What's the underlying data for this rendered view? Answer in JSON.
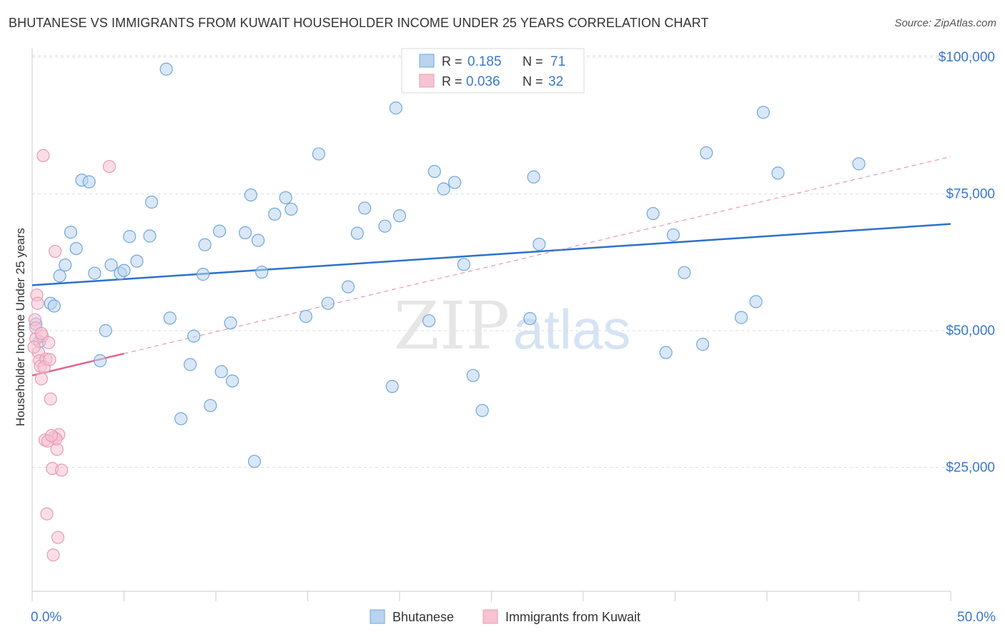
{
  "title": "BHUTANESE VS IMMIGRANTS FROM KUWAIT HOUSEHOLDER INCOME UNDER 25 YEARS CORRELATION CHART",
  "source": "Source: ZipAtlas.com",
  "watermark": {
    "zip": "ZIP",
    "atlas": "atlas"
  },
  "colors": {
    "blue": "#6fa8dc",
    "blue_fill": "#b9d3f0",
    "blue_line": "#2c72c7",
    "pink": "#e89ab3",
    "pink_fill": "#f6c3d3",
    "pink_line": "#e0648f",
    "axis_text": "#3a78c8",
    "grid": "#dddddd"
  },
  "legend": {
    "rows": [
      {
        "r_label": "R =",
        "r_value": "0.185",
        "n_label": "N =",
        "n_value": "71"
      },
      {
        "r_label": "R =",
        "r_value": "0.036",
        "n_label": "N =",
        "n_value": "32"
      }
    ]
  },
  "chart_data": {
    "type": "scatter",
    "xlabel": "",
    "ylabel": "Householder Income Under 25 years",
    "xlim": [
      0,
      50
    ],
    "ylim": [
      0,
      105000
    ],
    "x_tick_labels": [
      "0.0%",
      "50.0%"
    ],
    "y_ticks": [
      25000,
      50000,
      75000,
      100000
    ],
    "y_tick_labels": [
      "$25,000",
      "$50,000",
      "$75,000",
      "$100,000"
    ],
    "grid": true,
    "series": [
      {
        "name": "Bhutanese",
        "color": "blue",
        "trend": {
          "x": [
            0,
            50
          ],
          "y": [
            58300,
            69500
          ],
          "style": "solid"
        },
        "points": [
          [
            0.2,
            51200
          ],
          [
            0.4,
            48000
          ],
          [
            1.0,
            55000
          ],
          [
            1.2,
            54500
          ],
          [
            1.5,
            60000
          ],
          [
            1.8,
            62000
          ],
          [
            2.1,
            68000
          ],
          [
            2.4,
            65000
          ],
          [
            2.7,
            77500
          ],
          [
            3.1,
            77200
          ],
          [
            3.4,
            60500
          ],
          [
            4.0,
            50000
          ],
          [
            3.7,
            44500
          ],
          [
            4.3,
            62000
          ],
          [
            4.8,
            60500
          ],
          [
            5.0,
            61000
          ],
          [
            5.3,
            67200
          ],
          [
            5.7,
            62700
          ],
          [
            6.4,
            67300
          ],
          [
            6.5,
            73500
          ],
          [
            7.3,
            97800
          ],
          [
            7.5,
            52300
          ],
          [
            8.1,
            33900
          ],
          [
            8.6,
            43800
          ],
          [
            8.8,
            49000
          ],
          [
            9.3,
            60300
          ],
          [
            9.4,
            65700
          ],
          [
            9.7,
            36300
          ],
          [
            10.3,
            42500
          ],
          [
            10.2,
            68200
          ],
          [
            10.8,
            51400
          ],
          [
            10.9,
            40800
          ],
          [
            11.6,
            67900
          ],
          [
            11.9,
            74800
          ],
          [
            12.3,
            66500
          ],
          [
            12.5,
            60700
          ],
          [
            12.1,
            26100
          ],
          [
            13.2,
            71300
          ],
          [
            13.8,
            74300
          ],
          [
            14.1,
            72200
          ],
          [
            14.9,
            52600
          ],
          [
            15.6,
            82300
          ],
          [
            16.1,
            55000
          ],
          [
            17.2,
            58000
          ],
          [
            17.7,
            67800
          ],
          [
            18.1,
            72400
          ],
          [
            19.2,
            69100
          ],
          [
            19.6,
            39800
          ],
          [
            19.8,
            90700
          ],
          [
            20.0,
            71000
          ],
          [
            21.6,
            51800
          ],
          [
            21.9,
            79100
          ],
          [
            22.4,
            75900
          ],
          [
            23.0,
            77100
          ],
          [
            23.5,
            62100
          ],
          [
            24.0,
            41800
          ],
          [
            24.5,
            35400
          ],
          [
            27.1,
            52200
          ],
          [
            27.3,
            78100
          ],
          [
            27.6,
            65800
          ],
          [
            33.8,
            71400
          ],
          [
            34.5,
            46000
          ],
          [
            34.9,
            67500
          ],
          [
            35.5,
            60600
          ],
          [
            36.5,
            47500
          ],
          [
            36.7,
            82500
          ],
          [
            38.6,
            52400
          ],
          [
            39.4,
            55300
          ],
          [
            39.8,
            89900
          ],
          [
            40.6,
            78800
          ],
          [
            45.0,
            80500
          ]
        ]
      },
      {
        "name": "Immigrants from Kuwait",
        "color": "pink",
        "trend": {
          "x": [
            0,
            5
          ],
          "y": [
            41800,
            45800
          ],
          "style": "solid"
        },
        "trend_extended": {
          "x": [
            5,
            50
          ],
          "y": [
            45800,
            81800
          ],
          "style": "dashed"
        },
        "points": [
          [
            0.15,
            52000
          ],
          [
            0.2,
            50500
          ],
          [
            0.2,
            48500
          ],
          [
            0.25,
            56500
          ],
          [
            0.35,
            46000
          ],
          [
            0.4,
            44500
          ],
          [
            0.45,
            43500
          ],
          [
            0.5,
            41200
          ],
          [
            0.55,
            49000
          ],
          [
            0.6,
            82000
          ],
          [
            0.7,
            30000
          ],
          [
            0.75,
            44800
          ],
          [
            0.8,
            16500
          ],
          [
            0.9,
            47800
          ],
          [
            1.0,
            37500
          ],
          [
            1.1,
            24800
          ],
          [
            1.15,
            9000
          ],
          [
            1.2,
            30500
          ],
          [
            1.25,
            64500
          ],
          [
            1.35,
            28300
          ],
          [
            1.4,
            12200
          ],
          [
            1.45,
            31000
          ],
          [
            1.6,
            24500
          ],
          [
            4.2,
            80000
          ],
          [
            1.3,
            30200
          ],
          [
            0.85,
            29800
          ],
          [
            0.3,
            55000
          ],
          [
            0.65,
            43300
          ],
          [
            0.95,
            44700
          ],
          [
            0.1,
            47000
          ],
          [
            1.05,
            30800
          ],
          [
            0.5,
            49500
          ]
        ]
      }
    ]
  },
  "bottom_legend": [
    {
      "label": "Bhutanese",
      "color": "blue"
    },
    {
      "label": "Immigrants from Kuwait",
      "color": "pink"
    }
  ]
}
